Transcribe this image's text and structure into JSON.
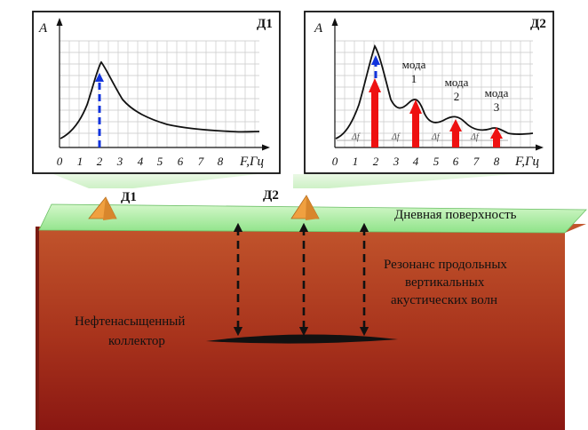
{
  "panels": {
    "left": {
      "tag": "Д1",
      "y_label": "A",
      "x_label": "F,Гц",
      "ticks": [
        "0",
        "1",
        "2",
        "3",
        "4",
        "5",
        "6",
        "7",
        "8"
      ]
    },
    "right": {
      "tag": "Д2",
      "y_label": "A",
      "x_label": "F,Гц",
      "ticks": [
        "0",
        "1",
        "2",
        "3",
        "4",
        "5",
        "6",
        "7",
        "8"
      ],
      "modes": [
        {
          "word": "мода",
          "num": "1"
        },
        {
          "word": "мода",
          "num": "2"
        },
        {
          "word": "мода",
          "num": "3"
        }
      ],
      "delta": "Δf"
    }
  },
  "section": {
    "sensor_left": "Д1",
    "sensor_right": "Д2",
    "surface": "Дневная поверхность",
    "resonance": [
      "Резонанс продольных",
      "вертикальных",
      "акустических волн"
    ],
    "reservoir": [
      "Нефтенасыщенный",
      "коллектор"
    ]
  },
  "colors": {
    "earth_top": "#c0522b",
    "earth_bottom": "#8b1712",
    "surface": "#b5f0a8",
    "red_arrow": "#ee1111",
    "blue_arrow": "#1133dd",
    "pyramid": "#f0a040"
  }
}
